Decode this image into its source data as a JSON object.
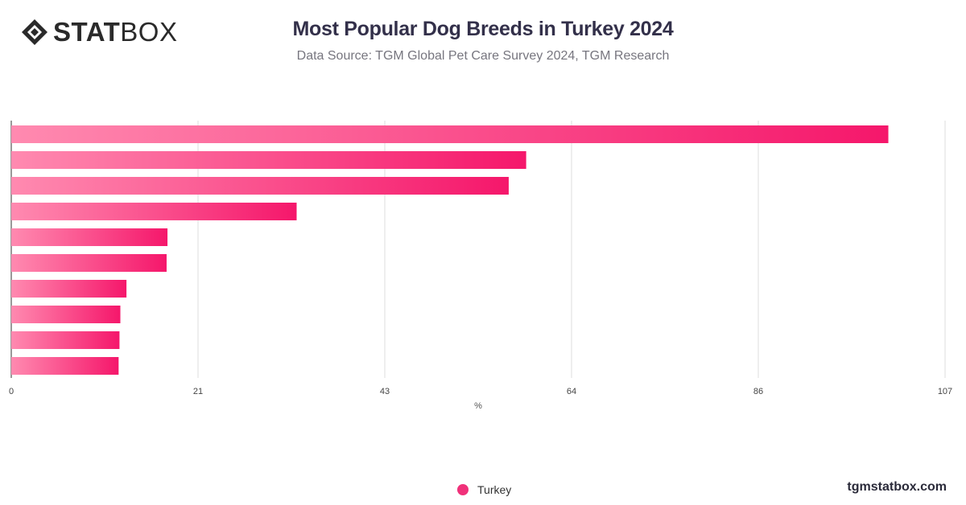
{
  "header": {
    "logo_bold": "STAT",
    "logo_light": "BOX",
    "title": "Most Popular Dog Breeds in Turkey 2024",
    "subtitle": "Data Source: TGM Global Pet Care Survey 2024, TGM Research"
  },
  "footer": {
    "url": "tgmstatbox.com"
  },
  "colors": {
    "bar_start": "#ff8ab0",
    "bar_end": "#f5176b",
    "legend_dot": "#f0317a",
    "grid": "#dddddd"
  },
  "chart_data": {
    "type": "bar",
    "orientation": "horizontal",
    "title": "Most Popular Dog Breeds in Turkey 2024",
    "subtitle": "Data Source: TGM Global Pet Care Survey 2024, TGM Research",
    "xlabel": "%",
    "ylabel": "",
    "xlim": [
      0,
      107
    ],
    "ticks": [
      "0",
      "21",
      "43",
      "64",
      "86",
      "107"
    ],
    "tick_values": [
      0,
      21.4,
      42.8,
      64.2,
      85.6,
      107
    ],
    "grid": true,
    "legend_position": "bottom-center",
    "series": [
      {
        "name": "Turkey",
        "values": [
          100.5,
          59,
          57,
          32.7,
          17.9,
          17.8,
          13.2,
          12.5,
          12.4,
          12.3
        ]
      }
    ]
  }
}
